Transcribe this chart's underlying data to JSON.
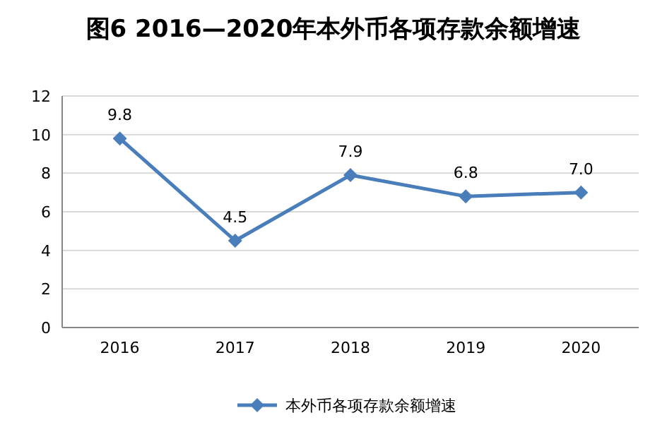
{
  "chart_data": {
    "type": "line",
    "title": "图6  2016—2020年本外币各项存款余额增速",
    "categories": [
      "2016",
      "2017",
      "2018",
      "2019",
      "2020"
    ],
    "series": [
      {
        "name": "本外币各项存款余额增速",
        "color": "#4a7ebb",
        "values": [
          9.8,
          4.5,
          7.9,
          6.8,
          7.0
        ],
        "value_labels": [
          "9.8",
          "4.5",
          "7.9",
          "6.8",
          "7.0"
        ]
      }
    ],
    "ylim": [
      0,
      12
    ],
    "yticks": [
      0,
      2,
      4,
      6,
      8,
      10,
      12
    ],
    "grid": "y",
    "legend": "bottom",
    "marker": "diamond",
    "line_style": "solid"
  }
}
